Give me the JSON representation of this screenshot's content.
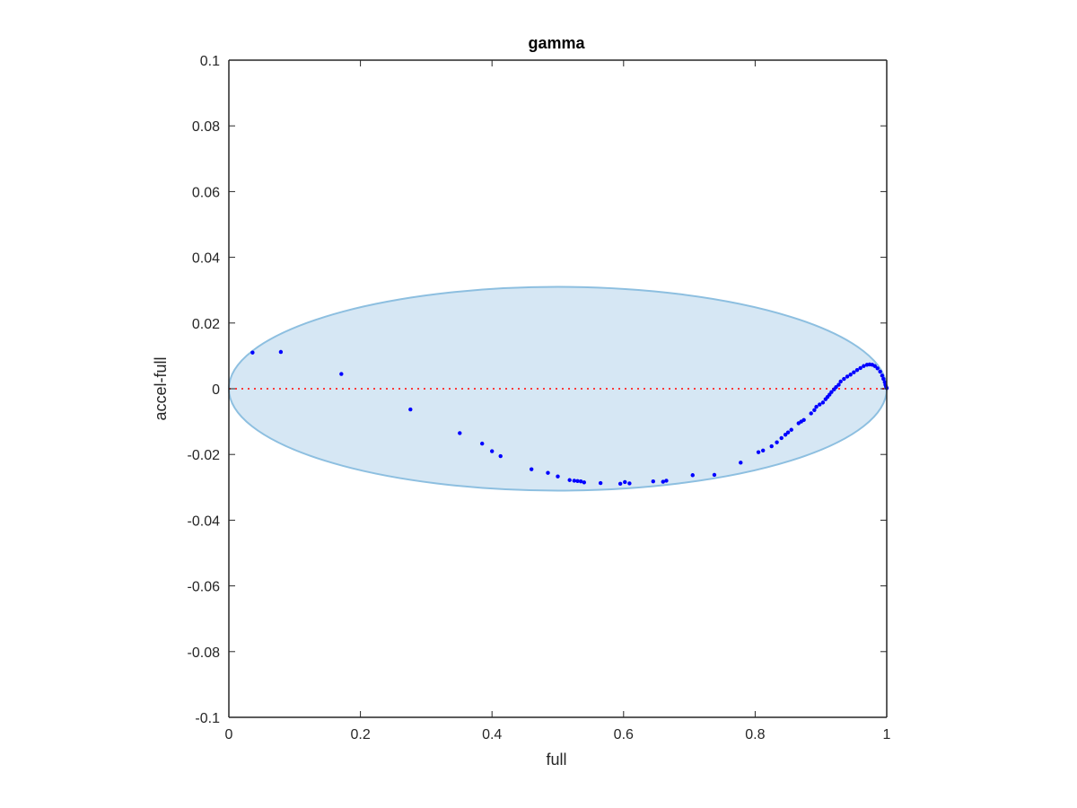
{
  "chart_data": {
    "type": "scatter",
    "title": "gamma",
    "xlabel": "full",
    "ylabel": "accel-full",
    "xlim": [
      0,
      1
    ],
    "ylim": [
      -0.1,
      0.1
    ],
    "x_ticks": [
      {
        "value": 0,
        "label": "0"
      },
      {
        "value": 0.2,
        "label": "0.2"
      },
      {
        "value": 0.4,
        "label": "0.4"
      },
      {
        "value": 0.6,
        "label": "0.6"
      },
      {
        "value": 0.8,
        "label": "0.8"
      },
      {
        "value": 1,
        "label": "1"
      }
    ],
    "y_ticks": [
      {
        "value": -0.1,
        "label": "-0.1"
      },
      {
        "value": -0.08,
        "label": "-0.08"
      },
      {
        "value": -0.06,
        "label": "-0.06"
      },
      {
        "value": -0.04,
        "label": "-0.04"
      },
      {
        "value": -0.02,
        "label": "-0.02"
      },
      {
        "value": 0,
        "label": "0"
      },
      {
        "value": 0.02,
        "label": "0.02"
      },
      {
        "value": 0.04,
        "label": "0.04"
      },
      {
        "value": 0.06,
        "label": "0.06"
      },
      {
        "value": 0.08,
        "label": "0.08"
      },
      {
        "value": 0.1,
        "label": "0.1"
      }
    ],
    "grid": false,
    "reference_line": {
      "y": 0,
      "style": "dotted",
      "color": "#ff3b3b"
    },
    "ellipse": {
      "cx": 0.5,
      "cy": 0,
      "rx": 0.5,
      "ry": 0.031,
      "fill": "#d6e7f4",
      "stroke": "#8dbfe0"
    },
    "series": [
      {
        "color": "#0000ff",
        "points": [
          [
            0.036,
            0.011
          ],
          [
            0.079,
            0.0112
          ],
          [
            0.171,
            0.0045
          ],
          [
            0.276,
            -0.0063
          ],
          [
            0.351,
            -0.0135
          ],
          [
            0.385,
            -0.0167
          ],
          [
            0.4,
            -0.019
          ],
          [
            0.413,
            -0.0205
          ],
          [
            0.46,
            -0.0245
          ],
          [
            0.485,
            -0.0256
          ],
          [
            0.5,
            -0.0267
          ],
          [
            0.518,
            -0.0278
          ],
          [
            0.525,
            -0.028
          ],
          [
            0.53,
            -0.0281
          ],
          [
            0.535,
            -0.0282
          ],
          [
            0.54,
            -0.0285
          ],
          [
            0.565,
            -0.0287
          ],
          [
            0.595,
            -0.0289
          ],
          [
            0.602,
            -0.0284
          ],
          [
            0.609,
            -0.0288
          ],
          [
            0.645,
            -0.0282
          ],
          [
            0.66,
            -0.0283
          ],
          [
            0.665,
            -0.028
          ],
          [
            0.705,
            -0.0263
          ],
          [
            0.738,
            -0.0262
          ],
          [
            0.778,
            -0.0225
          ],
          [
            0.805,
            -0.0193
          ],
          [
            0.812,
            -0.0188
          ],
          [
            0.825,
            -0.0175
          ],
          [
            0.833,
            -0.0163
          ],
          [
            0.84,
            -0.015
          ],
          [
            0.846,
            -0.014
          ],
          [
            0.85,
            -0.0133
          ],
          [
            0.855,
            -0.0125
          ],
          [
            0.866,
            -0.0105
          ],
          [
            0.87,
            -0.01
          ],
          [
            0.874,
            -0.0095
          ],
          [
            0.885,
            -0.0075
          ],
          [
            0.89,
            -0.0065
          ],
          [
            0.893,
            -0.0055
          ],
          [
            0.898,
            -0.0048
          ],
          [
            0.903,
            -0.0042
          ],
          [
            0.907,
            -0.0032
          ],
          [
            0.91,
            -0.0025
          ],
          [
            0.913,
            -0.0018
          ],
          [
            0.916,
            -0.001
          ],
          [
            0.92,
            -0.0002
          ],
          [
            0.923,
            0.0005
          ],
          [
            0.927,
            0.0012
          ],
          [
            0.93,
            0.0022
          ],
          [
            0.935,
            0.003
          ],
          [
            0.94,
            0.0037
          ],
          [
            0.945,
            0.0043
          ],
          [
            0.95,
            0.005
          ],
          [
            0.955,
            0.0057
          ],
          [
            0.96,
            0.0063
          ],
          [
            0.965,
            0.0069
          ],
          [
            0.97,
            0.0073
          ],
          [
            0.974,
            0.0074
          ],
          [
            0.978,
            0.0073
          ],
          [
            0.982,
            0.0069
          ],
          [
            0.986,
            0.0062
          ],
          [
            0.99,
            0.0052
          ],
          [
            0.993,
            0.004
          ],
          [
            0.995,
            0.003
          ],
          [
            0.997,
            0.002
          ],
          [
            0.998,
            0.0012
          ],
          [
            0.999,
            0.0006
          ],
          [
            1.0,
            0.0002
          ]
        ]
      }
    ]
  }
}
